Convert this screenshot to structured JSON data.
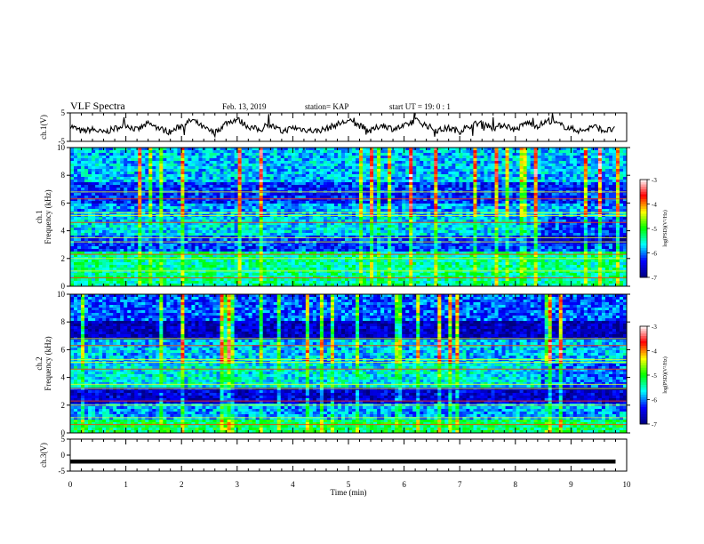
{
  "header": {
    "title": "VLF Spectra",
    "date": "Feb. 13, 2019",
    "station": "station= KAP",
    "start": "start  UT =   19: 0  : 1"
  },
  "chart_data": [
    {
      "type": "line",
      "name": "ch1-waveform",
      "ylabel": "ch.1(V)",
      "ylim": [
        -5,
        5
      ],
      "yticks": [
        "5",
        "-5"
      ],
      "x": [
        0,
        0.2,
        0.4,
        0.6,
        0.8,
        1,
        1.2,
        1.4,
        1.6,
        1.8,
        2,
        2.2,
        2.4,
        2.6,
        2.8,
        3,
        3.2,
        3.4,
        3.6,
        3.8,
        4,
        4.2,
        4.4,
        4.6,
        4.8,
        5,
        5.2,
        5.4,
        5.6,
        5.8,
        6,
        6.2,
        6.4,
        6.6,
        6.8,
        7,
        7.2,
        7.4,
        7.6,
        7.8,
        8,
        8.2,
        8.4,
        8.6,
        8.8,
        9,
        9.2,
        9.4,
        9.6,
        9.8
      ],
      "values": [
        0.5,
        -1.5,
        -0.8,
        -2.0,
        -0.5,
        0.8,
        -1.0,
        1.2,
        -0.5,
        -1.8,
        0.6,
        2.5,
        -0.3,
        -2.2,
        1.5,
        2.8,
        0.2,
        -1.0,
        0.8,
        -1.6,
        -0.2,
        -0.8,
        -1.4,
        -0.6,
        1.0,
        2.2,
        0.5,
        -1.4,
        0.8,
        -0.6,
        0.2,
        2.5,
        0.6,
        -1.2,
        -0.3,
        -1.5,
        0.6,
        1.8,
        -0.4,
        0.9,
        -1.0,
        1.6,
        0.4,
        2.3,
        0.8,
        -0.6,
        -1.4,
        0.3,
        -1.2,
        -0.8
      ]
    },
    {
      "type": "heatmap",
      "name": "ch1-spectrogram",
      "ylabel": "ch.1\nFrequency (kHz)",
      "ylim": [
        0,
        10
      ],
      "yticks": [
        "0",
        "2",
        "4",
        "6",
        "8",
        "10"
      ],
      "colorbar": {
        "label": "log(PSD)(V²/Hz)",
        "range": [
          -7,
          -3
        ],
        "ticks": [
          "-3",
          "-4",
          "-5",
          "-6",
          "-7"
        ]
      }
    },
    {
      "type": "heatmap",
      "name": "ch2-spectrogram",
      "ylabel": "ch.2\nFrequency (kHz)",
      "ylim": [
        0,
        10
      ],
      "yticks": [
        "0",
        "2",
        "4",
        "6",
        "8",
        "10"
      ],
      "colorbar": {
        "label": "log(PSD)(V²/Hz)",
        "range": [
          -7,
          -3
        ],
        "ticks": [
          "-3",
          "-4",
          "-5",
          "-6",
          "-7"
        ]
      }
    },
    {
      "type": "line",
      "name": "ch3-waveform",
      "ylabel": "ch.3(V)",
      "ylim": [
        -5,
        5
      ],
      "yticks": [
        "5",
        "0",
        "-5"
      ],
      "x": [
        0,
        9.8
      ],
      "values": [
        -2,
        -2
      ]
    }
  ],
  "xaxis": {
    "label": "Time  (min)",
    "xlim": [
      0,
      10
    ],
    "ticks": [
      "0",
      "1",
      "2",
      "3",
      "4",
      "5",
      "6",
      "7",
      "8",
      "9",
      "10"
    ]
  },
  "colors": {
    "waveform": "#000000",
    "colormap": [
      "#00007f",
      "#0000ff",
      "#00ffff",
      "#00ff00",
      "#ffff00",
      "#ff0000",
      "#ffffff"
    ]
  }
}
